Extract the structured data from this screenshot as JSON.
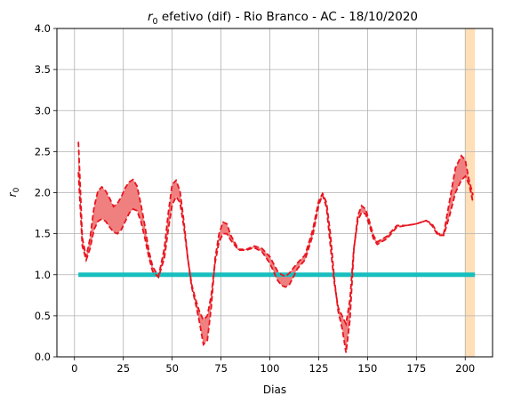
{
  "chart_data": {
    "type": "line",
    "title_prefix": "r",
    "title_sub": "0",
    "title_rest": " efetivo (dif) - Rio Branco - AC - 18/10/2020",
    "xlabel": "Dias",
    "ylabel_main": "r",
    "ylabel_sub": "0",
    "xlim": [
      -9,
      214
    ],
    "ylim": [
      0,
      4
    ],
    "x_ticks": [
      0,
      25,
      50,
      75,
      100,
      125,
      150,
      175,
      200
    ],
    "x_tick_labels": [
      "0",
      "25",
      "50",
      "75",
      "100",
      "125",
      "150",
      "175",
      "200"
    ],
    "y_ticks": [
      0.0,
      0.5,
      1.0,
      1.5,
      2.0,
      2.5,
      3.0,
      3.5,
      4.0
    ],
    "y_tick_labels": [
      "0.0",
      "0.5",
      "1.0",
      "1.5",
      "2.0",
      "2.5",
      "3.0",
      "3.5",
      "4.0"
    ],
    "grid": true,
    "highlight_band": {
      "x_start": 200,
      "x_end": 205,
      "color": "#ffdfb8"
    },
    "reference_line": {
      "y": 1.0,
      "x_start": 2,
      "x_end": 205,
      "color": "#17bebe"
    },
    "fill_color": "#f08080",
    "line_color": "#e8141e",
    "series": [
      {
        "x": [
          2,
          3,
          4,
          6,
          8,
          10,
          12,
          14,
          16,
          18,
          20,
          22,
          24,
          26,
          28,
          30,
          32,
          34,
          36,
          38,
          40,
          43,
          46,
          48,
          50,
          52,
          54,
          56,
          58,
          60,
          62,
          64,
          66,
          68,
          70,
          72,
          74,
          76,
          78,
          80,
          84,
          88,
          92,
          96,
          100,
          104,
          106,
          108,
          110,
          112,
          114,
          118,
          122,
          125,
          127,
          129,
          131,
          133,
          135,
          137,
          139,
          141,
          143,
          145,
          147,
          149,
          151,
          153,
          155,
          160,
          165,
          170,
          175,
          180,
          183,
          186,
          189,
          192,
          195,
          198,
          200,
          202,
          204
        ],
        "values": [
          2.62,
          2.05,
          1.45,
          1.22,
          1.45,
          1.82,
          2.02,
          2.07,
          2.02,
          1.93,
          1.83,
          1.87,
          1.95,
          2.06,
          2.13,
          2.16,
          2.08,
          1.86,
          1.6,
          1.3,
          1.1,
          0.98,
          1.32,
          1.75,
          2.1,
          2.15,
          2.02,
          1.65,
          1.2,
          0.85,
          0.65,
          0.42,
          0.15,
          0.2,
          0.6,
          1.2,
          1.5,
          1.64,
          1.62,
          1.48,
          1.31,
          1.31,
          1.35,
          1.32,
          1.22,
          1.04,
          1.0,
          0.98,
          1.02,
          1.08,
          1.14,
          1.24,
          1.55,
          1.9,
          1.99,
          1.88,
          1.5,
          0.95,
          0.55,
          0.35,
          0.05,
          0.45,
          1.3,
          1.72,
          1.84,
          1.8,
          1.65,
          1.48,
          1.4,
          1.47,
          1.6,
          1.6,
          1.62,
          1.66,
          1.62,
          1.5,
          1.5,
          1.9,
          2.3,
          2.45,
          2.4,
          2.15,
          1.97
        ]
      },
      {
        "x": [
          2,
          3,
          4,
          6,
          8,
          10,
          12,
          14,
          16,
          18,
          20,
          22,
          24,
          26,
          28,
          30,
          32,
          34,
          36,
          38,
          40,
          43,
          46,
          48,
          50,
          52,
          54,
          56,
          58,
          60,
          62,
          64,
          66,
          68,
          70,
          72,
          74,
          76,
          78,
          80,
          84,
          88,
          92,
          96,
          100,
          104,
          106,
          108,
          110,
          112,
          114,
          118,
          122,
          125,
          127,
          129,
          131,
          133,
          135,
          137,
          139,
          141,
          143,
          145,
          147,
          149,
          151,
          153,
          155,
          160,
          165,
          170,
          175,
          180,
          183,
          186,
          189,
          192,
          195,
          198,
          200,
          202,
          204
        ],
        "values": [
          2.25,
          1.8,
          1.35,
          1.18,
          1.32,
          1.55,
          1.65,
          1.68,
          1.65,
          1.58,
          1.52,
          1.5,
          1.55,
          1.65,
          1.75,
          1.8,
          1.78,
          1.65,
          1.45,
          1.22,
          1.04,
          0.97,
          1.2,
          1.55,
          1.85,
          1.95,
          1.88,
          1.58,
          1.2,
          0.88,
          0.7,
          0.55,
          0.45,
          0.5,
          0.75,
          1.15,
          1.4,
          1.5,
          1.5,
          1.42,
          1.3,
          1.3,
          1.33,
          1.28,
          1.14,
          0.93,
          0.87,
          0.85,
          0.88,
          0.97,
          1.07,
          1.18,
          1.48,
          1.85,
          1.97,
          1.82,
          1.35,
          0.9,
          0.6,
          0.5,
          0.4,
          0.7,
          1.32,
          1.66,
          1.76,
          1.74,
          1.6,
          1.44,
          1.37,
          1.44,
          1.58,
          1.6,
          1.62,
          1.66,
          1.6,
          1.48,
          1.48,
          1.72,
          2.0,
          2.15,
          2.2,
          2.1,
          1.88
        ]
      }
    ]
  }
}
